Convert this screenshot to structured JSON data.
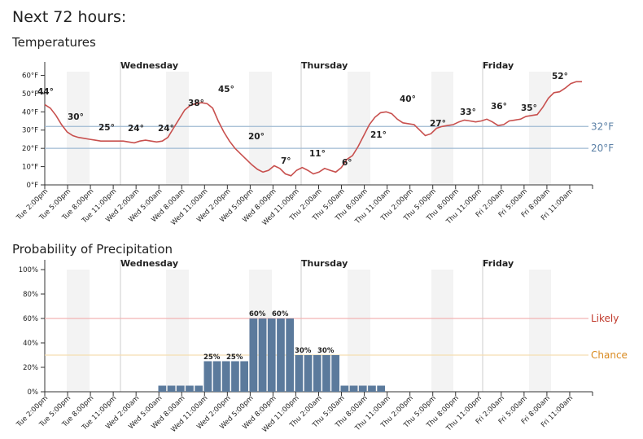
{
  "page": {
    "title": "Next 72 hours:"
  },
  "colors": {
    "temp_line": "#c8504e",
    "freezing_line": "#9fbad3",
    "freezing_label": "#5b80a6",
    "night_band": "#f3f3f3",
    "bar_fill": "#5b7a9c",
    "likely_line": "#f2b3b3",
    "likely_label": "#c0392b",
    "chance_line": "#f5ddb0",
    "chance_label": "#d98a1f",
    "axis": "#333333",
    "day_divider": "#cccccc"
  },
  "chart_data": [
    {
      "type": "line",
      "title": "Temperatures",
      "days": [
        {
          "label": "Wednesday",
          "at_hour": 10
        },
        {
          "label": "Thursday",
          "at_hour": 34
        },
        {
          "label": "Friday",
          "at_hour": 58
        }
      ],
      "x_tick_labels": [
        "Tue 2:00pm",
        "Tue 5:00pm",
        "Tue 8:00pm",
        "Tue 11:00pm",
        "Wed 2:00am",
        "Wed 5:00am",
        "Wed 8:00am",
        "Wed 11:00am",
        "Wed 2:00pm",
        "Wed 5:00pm",
        "Wed 8:00pm",
        "Wed 11:00pm",
        "Thu 2:00am",
        "Thu 5:00am",
        "Thu 8:00am",
        "Thu 11:00am",
        "Thu 2:00pm",
        "Thu 5:00pm",
        "Thu 8:00pm",
        "Thu 11:00pm",
        "Fri 2:00am",
        "Fri 5:00am",
        "Fri 8:00am",
        "Fri 11:00am"
      ],
      "y_tick_labels": [
        "0°F",
        "10°F",
        "20°F",
        "30°F",
        "40°F",
        "50°F",
        "60°F"
      ],
      "ylim": [
        0,
        62
      ],
      "night_bands": [
        [
          3,
          6
        ],
        [
          15,
          18
        ],
        [
          27,
          30
        ],
        [
          39,
          42
        ],
        [
          51,
          54
        ],
        [
          63,
          66
        ]
      ],
      "reference_lines": [
        {
          "value": 32,
          "label": "32°F"
        },
        {
          "value": 20,
          "label": "20°F"
        }
      ],
      "series": [
        {
          "values": [
            44,
            42,
            38,
            33,
            29,
            27,
            26,
            25.5,
            25,
            24.5,
            24,
            24,
            24,
            24,
            24,
            23.5,
            23,
            24,
            24.5,
            24,
            23.5,
            24,
            26,
            31,
            36,
            41,
            43.5,
            44.5,
            45,
            44.5,
            42,
            35,
            29,
            24,
            20,
            17,
            14,
            11,
            8.5,
            7,
            8,
            10.5,
            9,
            6,
            5,
            8,
            9.5,
            8,
            6,
            7,
            9,
            8,
            7,
            9.5,
            14,
            16,
            21,
            27,
            33,
            37,
            39.5,
            40,
            39,
            36,
            34,
            33.5,
            33,
            30,
            27,
            28,
            31,
            32,
            32.5,
            33,
            34.5,
            35.5,
            35,
            34.5,
            35,
            36,
            34.5,
            32.5,
            33,
            35,
            35.5,
            36,
            37.5,
            38,
            38.5,
            42.5,
            47.5,
            50.5,
            51,
            53,
            55.5,
            56.5,
            56.5
          ]
        }
      ],
      "point_labels": [
        {
          "at_hour": 0,
          "text": "44°"
        },
        {
          "at_hour": 6,
          "text": "30°"
        },
        {
          "at_hour": 12,
          "text": "25°"
        },
        {
          "at_hour": 18,
          "text": "24°"
        },
        {
          "at_hour": 24,
          "text": "24°"
        },
        {
          "at_hour": 30,
          "text": "38°"
        },
        {
          "at_hour": 36,
          "text": "45°"
        },
        {
          "at_hour": 42,
          "text": "20°"
        },
        {
          "at_hour": 48,
          "text": "7°"
        },
        {
          "at_hour": 54,
          "text": "11°"
        },
        {
          "at_hour": 60,
          "text": "6°"
        },
        {
          "at_hour": 66,
          "text": "21°"
        },
        {
          "at_hour": 72,
          "text": "40°"
        },
        {
          "at_hour": 78,
          "text": "27°"
        },
        {
          "at_hour": 84,
          "text": "33°"
        },
        {
          "at_hour": 90,
          "text": "36°"
        },
        {
          "at_hour": 96,
          "text": "35°"
        },
        {
          "at_hour": 102,
          "text": "52°"
        }
      ]
    },
    {
      "type": "bar",
      "title": "Probability of Precipitation",
      "days": [
        {
          "label": "Wednesday",
          "at_hour": 10
        },
        {
          "label": "Thursday",
          "at_hour": 34
        },
        {
          "label": "Friday",
          "at_hour": 58
        }
      ],
      "x_tick_labels": [
        "Tue 2:00pm",
        "Tue 5:00pm",
        "Tue 8:00pm",
        "Tue 11:00pm",
        "Wed 2:00am",
        "Wed 5:00am",
        "Wed 8:00am",
        "Wed 11:00am",
        "Wed 2:00pm",
        "Wed 5:00pm",
        "Wed 8:00pm",
        "Wed 11:00pm",
        "Thu 2:00am",
        "Thu 5:00am",
        "Thu 8:00am",
        "Thu 11:00am",
        "Thu 2:00pm",
        "Thu 5:00pm",
        "Thu 8:00pm",
        "Thu 11:00pm",
        "Fri 2:00am",
        "Fri 5:00am",
        "Fri 8:00am",
        "Fri 11:00am"
      ],
      "y_tick_labels": [
        "0%",
        "20%",
        "40%",
        "60%",
        "80%",
        "100%"
      ],
      "ylim": [
        0,
        100
      ],
      "night_bands": [
        [
          3,
          6
        ],
        [
          15,
          18
        ],
        [
          27,
          30
        ],
        [
          39,
          42
        ],
        [
          51,
          54
        ],
        [
          63,
          66
        ]
      ],
      "reference_lines": [
        {
          "value": 60,
          "label": "Likely"
        },
        {
          "value": 30,
          "label": "Chance"
        }
      ],
      "series": [
        {
          "values": [
            0,
            0,
            0,
            0,
            0,
            0,
            0,
            0,
            0,
            0,
            0,
            0,
            0,
            0,
            0,
            0,
            0,
            0,
            0,
            0,
            0,
            0,
            0,
            0,
            0,
            0,
            0,
            0,
            0,
            0,
            0,
            0,
            0,
            0,
            0,
            0,
            0,
            0,
            0,
            0,
            0,
            0,
            0,
            0,
            0,
            0,
            0,
            0,
            0,
            0,
            0,
            0,
            0,
            0,
            0,
            0,
            0,
            0,
            0,
            0,
            0,
            0,
            0,
            0,
            0,
            0,
            0,
            0,
            0,
            0,
            0,
            0,
            0,
            0,
            0,
            0,
            0,
            0,
            0,
            0,
            0,
            0,
            0,
            0,
            0,
            0,
            0,
            0,
            0,
            0,
            0,
            0,
            0,
            0,
            0,
            0,
            0,
            0,
            0,
            0,
            0,
            0,
            0,
            0,
            0,
            0,
            0,
            0,
            0,
            0,
            0,
            0
          ],
          "blocks": [
            {
              "start": 26,
              "end": 36,
              "value": 5
            },
            {
              "start": 36,
              "end": 46,
              "value": 25
            },
            {
              "start": 46,
              "end": 56,
              "value": 60
            },
            {
              "start": 56,
              "end": 66,
              "value": 30
            },
            {
              "start": 66,
              "end": 76,
              "value": 5
            }
          ]
        }
      ],
      "point_labels": [
        {
          "at_hour": 37.5,
          "text": "25%"
        },
        {
          "at_hour": 43.5,
          "text": "25%"
        },
        {
          "at_hour": 48,
          "text": "60%"
        },
        {
          "at_hour": 54,
          "text": "60%"
        },
        {
          "at_hour": 60,
          "text": "30%"
        },
        {
          "at_hour": 66,
          "text": "30%"
        }
      ]
    }
  ]
}
